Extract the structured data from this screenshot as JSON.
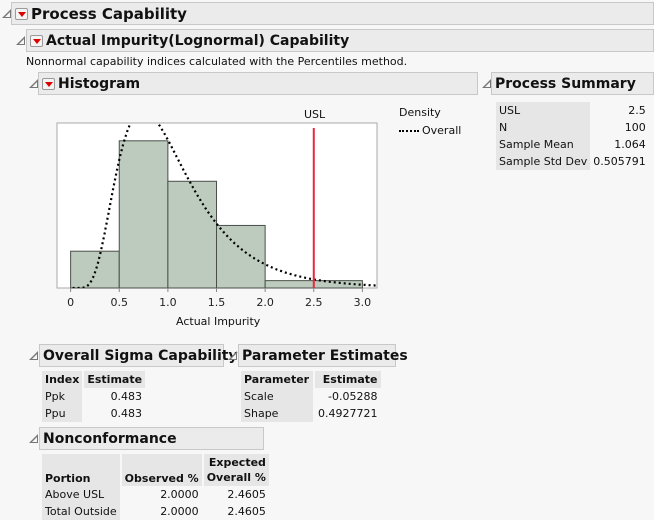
{
  "report": {
    "title": "Process Capability",
    "subtitle": "Actual Impurity(Lognormal) Capability",
    "note": "Nonnormal capability indices calculated with the Percentiles method."
  },
  "histogram": {
    "title": "Histogram",
    "usl_label": "USL",
    "legend_title": "Density",
    "legend_item": "Overall",
    "colors": {
      "bar": "#bccbbd",
      "usl": "#e8283c",
      "curve": "#000000"
    }
  },
  "chart_data": {
    "type": "bar",
    "xlabel": "Actual Impurity",
    "ylabel": "",
    "xlim": [
      -0.14,
      3.15
    ],
    "xticks": [
      "0",
      "0.5",
      "1.0",
      "1.5",
      "2.0",
      "2.5",
      "3.0"
    ],
    "bins": [
      [
        0,
        0.5
      ],
      [
        0.5,
        1.0
      ],
      [
        1.0,
        1.5
      ],
      [
        1.5,
        2.0
      ],
      [
        2.0,
        2.5
      ],
      [
        2.5,
        3.0
      ]
    ],
    "counts": [
      10,
      40,
      29,
      17,
      2,
      2
    ],
    "usl": 2.5,
    "density_curve": {
      "name": "Overall",
      "distribution": "lognormal",
      "scale": -0.05288,
      "shape": 0.4927721,
      "style": "dotted"
    },
    "grid": false,
    "legend": "right"
  },
  "process_summary": {
    "title": "Process Summary",
    "rows": [
      {
        "label": "USL",
        "value": "2.5"
      },
      {
        "label": "N",
        "value": "100"
      },
      {
        "label": "Sample Mean",
        "value": "1.064"
      },
      {
        "label": "Sample Std Dev",
        "value": "0.505791"
      }
    ]
  },
  "overall_sigma": {
    "title": "Overall Sigma Capability",
    "headers": [
      "Index",
      "Estimate"
    ],
    "rows": [
      [
        "Ppk",
        "0.483"
      ],
      [
        "Ppu",
        "0.483"
      ]
    ]
  },
  "parameter_estimates": {
    "title": "Parameter Estimates",
    "headers": [
      "Parameter",
      "Estimate"
    ],
    "rows": [
      [
        "Scale",
        "-0.05288"
      ],
      [
        "Shape",
        "0.4927721"
      ]
    ]
  },
  "nonconformance": {
    "title": "Nonconformance",
    "headers": [
      "Portion",
      "Observed %",
      "Expected",
      "Overall %"
    ],
    "rows": [
      [
        "Above USL",
        "2.0000",
        "2.4605"
      ],
      [
        "Total Outside",
        "2.0000",
        "2.4605"
      ]
    ]
  }
}
